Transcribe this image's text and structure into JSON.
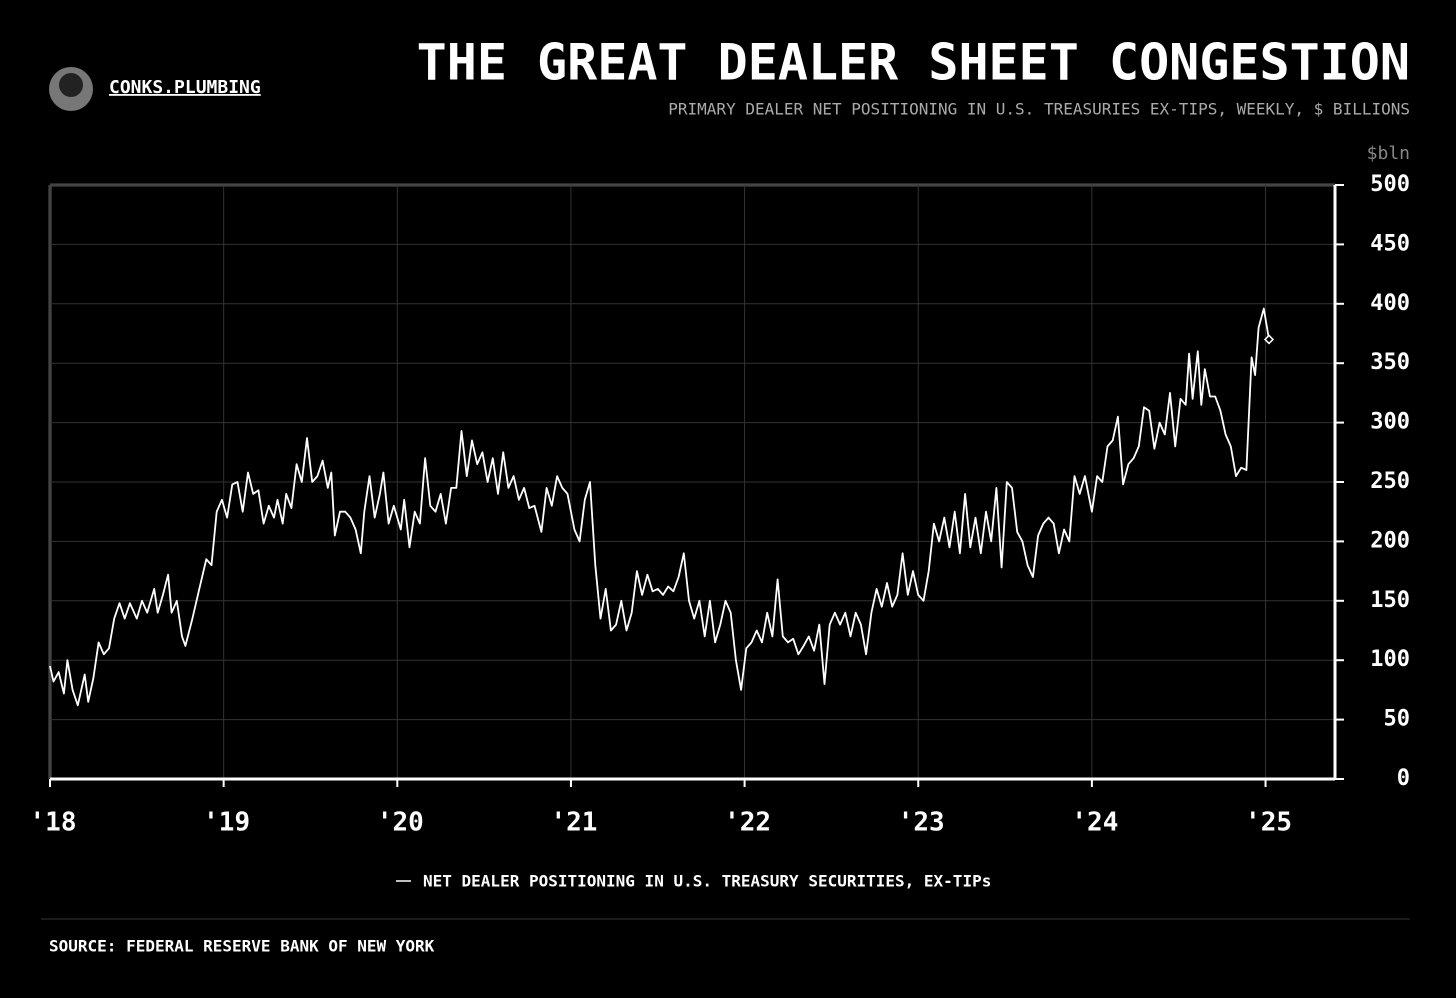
{
  "chart_data": {
    "type": "line",
    "brand": "CONKS.PLUMBING",
    "title": "THE GREAT DEALER SHEET CONGESTION",
    "subtitle": "PRIMARY DEALER NET POSITIONING IN U.S. TREASURIES EX-TIPS, WEEKLY, $ BILLIONS",
    "y_label": "$bln",
    "source": "SOURCE: FEDERAL RESERVE BANK OF NEW YORK",
    "xlim": [
      2018,
      2025.4
    ],
    "xticks": [
      {
        "value": 2018,
        "label": "'18"
      },
      {
        "value": 2019,
        "label": "'19"
      },
      {
        "value": 2020,
        "label": "'20"
      },
      {
        "value": 2021,
        "label": "'21"
      },
      {
        "value": 2022,
        "label": "'22"
      },
      {
        "value": 2023,
        "label": "'23"
      },
      {
        "value": 2024,
        "label": "'24"
      },
      {
        "value": 2025,
        "label": "'25"
      }
    ],
    "ylim": [
      0,
      500
    ],
    "yticks": [
      0,
      50,
      100,
      150,
      200,
      250,
      300,
      350,
      400,
      450,
      500
    ],
    "grid": true,
    "x": [
      2018,
      2018.02,
      2018.05,
      2018.08,
      2018.1,
      2018.13,
      2018.16,
      2018.2,
      2018.22,
      2018.25,
      2018.28,
      2018.31,
      2018.34,
      2018.37,
      2018.4,
      2018.43,
      2018.46,
      2018.5,
      2018.53,
      2018.56,
      2018.6,
      2018.62,
      2018.65,
      2018.68,
      2018.7,
      2018.73,
      2018.76,
      2018.78,
      2018.82,
      2018.86,
      2018.9,
      2018.93,
      2018.96,
      2018.99,
      2019.02,
      2019.05,
      2019.08,
      2019.11,
      2019.14,
      2019.17,
      2019.2,
      2019.23,
      2019.26,
      2019.29,
      2019.31,
      2019.34,
      2019.36,
      2019.39,
      2019.42,
      2019.45,
      2019.48,
      2019.51,
      2019.54,
      2019.57,
      2019.6,
      2019.62,
      2019.64,
      2019.67,
      2019.7,
      2019.73,
      2019.76,
      2019.79,
      2019.81,
      2019.84,
      2019.87,
      2019.9,
      2019.92,
      2019.95,
      2019.98,
      2020.02,
      2020.04,
      2020.07,
      2020.1,
      2020.13,
      2020.16,
      2020.19,
      2020.22,
      2020.25,
      2020.28,
      2020.31,
      2020.34,
      2020.37,
      2020.4,
      2020.43,
      2020.46,
      2020.49,
      2020.52,
      2020.55,
      2020.58,
      2020.61,
      2020.64,
      2020.67,
      2020.7,
      2020.73,
      2020.76,
      2020.79,
      2020.83,
      2020.86,
      2020.89,
      2020.92,
      2020.95,
      2020.98,
      2021.02,
      2021.05,
      2021.08,
      2021.11,
      2021.14,
      2021.17,
      2021.2,
      2021.23,
      2021.26,
      2021.29,
      2021.32,
      2021.35,
      2021.38,
      2021.41,
      2021.44,
      2021.47,
      2021.5,
      2021.53,
      2021.56,
      2021.59,
      2021.62,
      2021.65,
      2021.68,
      2021.71,
      2021.74,
      2021.77,
      2021.8,
      2021.83,
      2021.86,
      2021.89,
      2021.92,
      2021.95,
      2021.98,
      2022.01,
      2022.04,
      2022.07,
      2022.1,
      2022.13,
      2022.16,
      2022.19,
      2022.22,
      2022.25,
      2022.28,
      2022.31,
      2022.34,
      2022.37,
      2022.4,
      2022.43,
      2022.46,
      2022.49,
      2022.52,
      2022.55,
      2022.58,
      2022.61,
      2022.64,
      2022.67,
      2022.7,
      2022.73,
      2022.76,
      2022.79,
      2022.82,
      2022.85,
      2022.88,
      2022.91,
      2022.94,
      2022.97,
      2023,
      2023.03,
      2023.06,
      2023.09,
      2023.12,
      2023.15,
      2023.18,
      2023.21,
      2023.24,
      2023.27,
      2023.3,
      2023.33,
      2023.36,
      2023.39,
      2023.42,
      2023.45,
      2023.48,
      2023.51,
      2023.54,
      2023.57,
      2023.6,
      2023.63,
      2023.66,
      2023.69,
      2023.72,
      2023.75,
      2023.78,
      2023.81,
      2023.84,
      2023.87,
      2023.9,
      2023.93,
      2023.96,
      2024,
      2024.03,
      2024.06,
      2024.09,
      2024.12,
      2024.15,
      2024.18,
      2024.21,
      2024.24,
      2024.27,
      2024.3,
      2024.33,
      2024.36,
      2024.39,
      2024.42,
      2024.45,
      2024.48,
      2024.51,
      2024.54,
      2024.56,
      2024.58,
      2024.61,
      2024.63,
      2024.65,
      2024.68,
      2024.71,
      2024.74,
      2024.77,
      2024.8,
      2024.83,
      2024.86,
      2024.89,
      2024.92,
      2024.94,
      2024.96,
      2024.99,
      2025.02
    ],
    "series": [
      {
        "name": "NET DEALER POSITIONING IN U.S. TREASURY SECURITIES, EX-TIPs",
        "color": "#ffffff",
        "values": [
          95,
          82,
          90,
          72,
          100,
          75,
          62,
          88,
          65,
          85,
          115,
          105,
          110,
          135,
          148,
          135,
          148,
          135,
          150,
          140,
          160,
          140,
          155,
          172,
          140,
          150,
          120,
          112,
          135,
          160,
          185,
          180,
          225,
          235,
          220,
          248,
          250,
          225,
          258,
          240,
          243,
          215,
          230,
          220,
          235,
          215,
          240,
          228,
          265,
          250,
          287,
          250,
          255,
          268,
          245,
          258,
          205,
          225,
          225,
          220,
          210,
          190,
          225,
          255,
          220,
          240,
          258,
          215,
          230,
          210,
          235,
          195,
          225,
          215,
          270,
          230,
          225,
          240,
          215,
          245,
          245,
          293,
          255,
          285,
          265,
          275,
          250,
          270,
          240,
          275,
          245,
          255,
          235,
          245,
          228,
          230,
          208,
          245,
          230,
          255,
          245,
          240,
          210,
          200,
          235,
          250,
          180,
          135,
          160,
          125,
          130,
          150,
          125,
          140,
          175,
          155,
          172,
          158,
          160,
          155,
          162,
          158,
          170,
          190,
          150,
          135,
          150,
          120,
          150,
          115,
          130,
          150,
          140,
          100,
          75,
          110,
          115,
          125,
          115,
          140,
          120,
          168,
          120,
          115,
          118,
          105,
          112,
          120,
          108,
          130,
          80,
          130,
          140,
          130,
          140,
          120,
          140,
          130,
          105,
          140,
          160,
          145,
          165,
          145,
          155,
          190,
          155,
          175,
          155,
          150,
          175,
          215,
          200,
          220,
          195,
          225,
          190,
          240,
          195,
          220,
          190,
          225,
          200,
          245,
          178,
          250,
          245,
          208,
          200,
          180,
          170,
          205,
          215,
          220,
          215,
          190,
          210,
          200,
          255,
          240,
          255,
          225,
          255,
          250,
          280,
          285,
          305,
          248,
          265,
          270,
          280,
          313,
          310,
          278,
          300,
          290,
          325,
          280,
          320,
          315,
          358,
          320,
          360,
          315,
          345,
          322,
          322,
          310,
          290,
          280,
          255,
          262,
          260,
          355,
          340,
          380,
          396,
          370
        ]
      }
    ]
  }
}
